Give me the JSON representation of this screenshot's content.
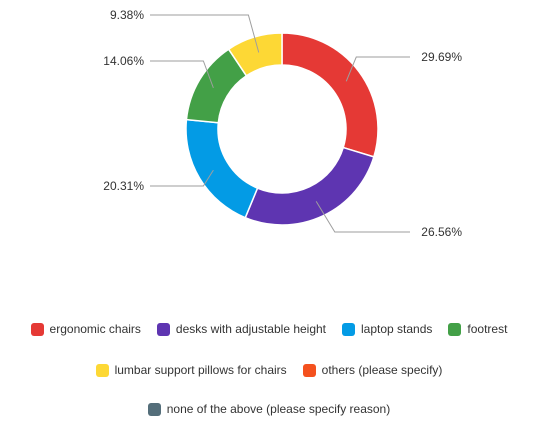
{
  "chart_data": {
    "type": "pie",
    "variant": "donut",
    "series": [
      {
        "name": "ergonomic chairs",
        "value": 29.69,
        "label": "29.69%",
        "color": "#E53935"
      },
      {
        "name": "desks with adjustable height",
        "value": 26.56,
        "label": "26.56%",
        "color": "#5E35B1"
      },
      {
        "name": "laptop stands",
        "value": 20.31,
        "label": "20.31%",
        "color": "#039BE5"
      },
      {
        "name": "footrest",
        "value": 14.06,
        "label": "14.06%",
        "color": "#43A047"
      },
      {
        "name": "lumbar support pillows for chairs",
        "value": 9.38,
        "label": "9.38%",
        "color": "#FDD835"
      },
      {
        "name": "others (please specify)",
        "value": 0,
        "label": "",
        "color": "#F4511E"
      },
      {
        "name": "none of the above (please specify reason)",
        "value": 0,
        "label": "",
        "color": "#546E7A"
      }
    ],
    "legend": "bottom",
    "start_angle": "top",
    "direction": "clockwise"
  }
}
